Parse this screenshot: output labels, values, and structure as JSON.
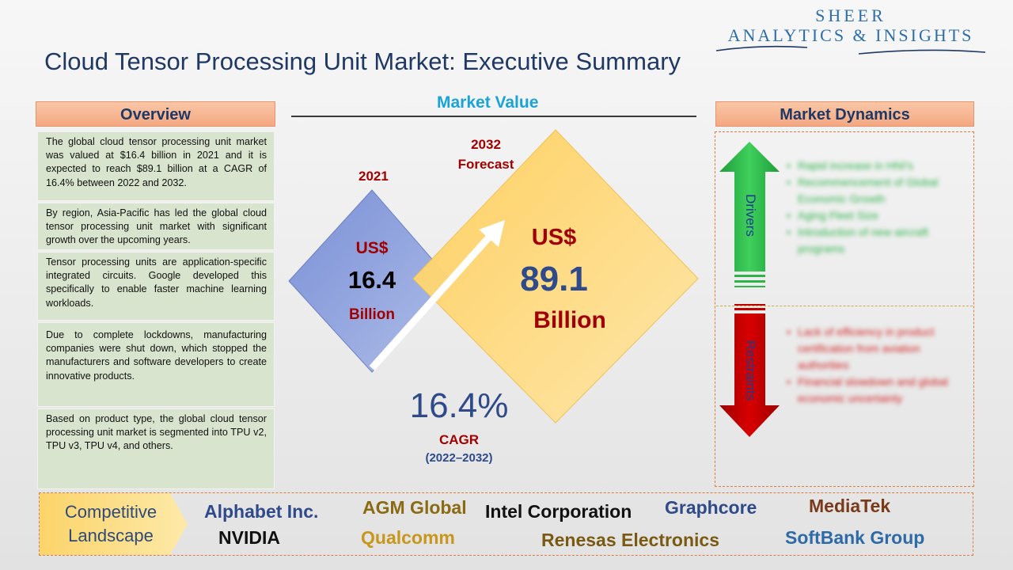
{
  "logo": {
    "line1": "SHEER",
    "line2": "ANALYTICS & INSIGHTS"
  },
  "title": "Cloud Tensor Processing Unit Market: Executive Summary",
  "overview": {
    "heading": "Overview",
    "paragraphs": [
      "The global cloud tensor processing unit market was valued at $16.4 billion in 2021 and it is expected to reach $89.1 billion at a CAGR of 16.4% between 2022 and 2032.",
      "By region, Asia-Pacific has led the global cloud tensor processing unit market with significant growth over the upcoming years.",
      "Tensor processing units are application-specific integrated circuits. Google developed this specifically to enable faster machine learning workloads.",
      "Due to complete lockdowns, manufacturing companies were shut down, which stopped the manufacturers and software developers to create innovative products.",
      "Based on product type, the global cloud tensor processing unit market is segmented into TPU v2, TPU v3, TPU v4, and others."
    ]
  },
  "market_value": {
    "heading": "Market Value",
    "left": {
      "year": "2021",
      "currency": "US$",
      "value": "16.4",
      "unit": "Billion"
    },
    "right": {
      "year": "2032",
      "year_note": "Forecast",
      "currency": "US$",
      "value": "89.1",
      "unit": "Billion"
    },
    "cagr": {
      "value": "16.4%",
      "label": "CAGR",
      "period": "(2022–2032)"
    }
  },
  "market_dynamics": {
    "heading": "Market Dynamics",
    "drivers": {
      "label": "Drivers",
      "items": [
        "Rapid increase in HNI's",
        "Recommencement of Global Economic Growth",
        "Aging Fleet Size",
        "Introduction of new aircraft programs"
      ]
    },
    "restraints": {
      "label": "Restraints",
      "items": [
        "Lack of efficiency in product certification from aviation authorities",
        "Financial slowdown and global economic uncertainty"
      ]
    }
  },
  "competitive_landscape": {
    "label_line1": "Competitive",
    "label_line2": "Landscape",
    "companies": [
      "Alphabet Inc.",
      "AGM Global",
      "Intel Corporation",
      "Graphcore",
      "MediaTek",
      "NVIDIA",
      "Qualcomm",
      "Renesas Electronics",
      "SoftBank Group"
    ]
  },
  "colors": {
    "title": "#1f3864",
    "accent_red": "#a00000",
    "accent_blue": "#2e4a8a",
    "market_value_heading": "#1aa3d9",
    "drivers_arrow": "#2fb34a",
    "restraints_arrow": "#c00000",
    "diamond_2021": "#8fa5dc",
    "diamond_2032": "#ffd77a"
  }
}
